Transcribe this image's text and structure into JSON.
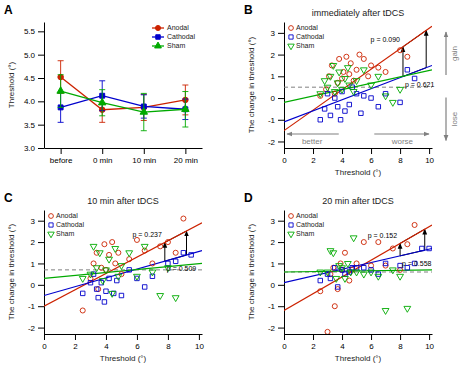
{
  "chart_data": [
    {
      "type": "line",
      "ylabel": "Threshold (°)",
      "categories": [
        "before",
        "0 min",
        "10 min",
        "20 min"
      ],
      "ylim": [
        3.0,
        5.7
      ],
      "yticks": [
        {
          "value": 3.0,
          "label": "3.0"
        },
        3.5,
        {
          "value": 4.0,
          "label": "4.0"
        },
        4.5,
        {
          "value": 5.0,
          "label": "5.0"
        },
        5.5
      ],
      "legend": "upper right",
      "series": [
        {
          "name": "Anodal",
          "color": "#cc2200",
          "marker": "circle",
          "values": [
            4.52,
            3.82,
            3.87,
            4.03
          ],
          "errors": [
            0.35,
            0.27,
            0.28,
            0.32
          ]
        },
        {
          "name": "Cathodal",
          "color": "#0000cc",
          "marker": "square",
          "values": [
            3.87,
            4.12,
            3.89,
            3.83
          ],
          "errors": [
            0.32,
            0.32,
            0.25,
            0.22
          ]
        },
        {
          "name": "Sham",
          "color": "#00aa00",
          "marker": "triangle-up",
          "values": [
            4.22,
            3.97,
            3.77,
            3.83
          ],
          "errors": [
            0.35,
            0.28,
            0.4,
            0.38
          ]
        }
      ],
      "annotations": [
        {
          "type": "label",
          "text": "A"
        }
      ]
    },
    {
      "type": "scatter",
      "title": "immediately after tDCS",
      "xlabel": "Threshold (°)",
      "ylabel": "The change in threshold (°)",
      "xlim": [
        0,
        10.2
      ],
      "ylim": [
        -2.3,
        3.5
      ],
      "xticks": [
        0,
        2,
        4,
        6,
        8,
        10
      ],
      "yticks": [
        -2,
        -1,
        0,
        1,
        2,
        3
      ],
      "legend": "upper left",
      "series": [
        {
          "type": "scatter",
          "name": "Anodal",
          "color": "#cc2200",
          "marker": "circle",
          "x": [
            2.5,
            2.9,
            3.1,
            3.3,
            3.5,
            3.7,
            3.8,
            4.0,
            4.1,
            4.3,
            4.5,
            4.6,
            4.8,
            5.0,
            5.2,
            5.5,
            5.8,
            6.0,
            6.5,
            7.0,
            8.0,
            8.5
          ],
          "values": [
            0.1,
            0.4,
            1.0,
            1.5,
            0.2,
            0.7,
            1.8,
            0.9,
            1.2,
            1.9,
            1.1,
            1.6,
            0.8,
            1.3,
            2.0,
            1.8,
            1.0,
            1.5,
            1.4,
            1.2,
            2.2,
            1.9
          ]
        },
        {
          "type": "scatter",
          "name": "Cathodal",
          "color": "#0000cc",
          "marker": "square",
          "x": [
            2.5,
            2.8,
            3.0,
            3.2,
            3.5,
            3.7,
            3.9,
            4.0,
            4.2,
            4.5,
            4.7,
            5.0,
            5.3,
            5.5,
            6.0,
            6.5,
            7.0,
            8.0,
            8.5,
            9.0
          ],
          "values": [
            -1.0,
            -0.5,
            0.2,
            -0.8,
            0.0,
            -0.4,
            -1.0,
            0.3,
            -0.6,
            -0.3,
            0.5,
            0.2,
            -0.7,
            0.1,
            0.0,
            -0.4,
            0.2,
            -0.2,
            1.3,
            0.9
          ]
        },
        {
          "type": "scatter",
          "name": "Sham",
          "color": "#00aa00",
          "marker": "triangle-down",
          "x": [
            2.5,
            2.8,
            3.0,
            3.2,
            3.4,
            3.5,
            3.7,
            3.8,
            4.0,
            4.2,
            4.4,
            4.5,
            4.8,
            5.0,
            5.5,
            6.0,
            6.5,
            7.0,
            7.5,
            8.0
          ],
          "values": [
            0.2,
            0.8,
            0.5,
            1.0,
            1.5,
            0.3,
            0.7,
            1.2,
            0.4,
            0.9,
            1.4,
            0.6,
            0.3,
            0.8,
            1.3,
            0.6,
            1.0,
            0.1,
            -0.2,
            0.4
          ]
        },
        {
          "type": "line",
          "color": "#cc2200",
          "x": [
            0,
            10.2
          ],
          "values": [
            -1.5,
            3.3
          ]
        },
        {
          "type": "line",
          "color": "#0000cc",
          "x": [
            0,
            10.2
          ],
          "values": [
            -1.1,
            1.5
          ]
        },
        {
          "type": "line",
          "color": "#00aa00",
          "x": [
            0,
            10.2
          ],
          "values": [
            -0.2,
            1.3
          ]
        }
      ],
      "annotations": [
        {
          "type": "label",
          "text": "B"
        },
        {
          "type": "hline",
          "y": 0.5,
          "color": "gray",
          "line_style": "dashed"
        },
        {
          "type": "bracket",
          "color": "black",
          "x": [
            8.2,
            9.8
          ],
          "y_top": [
            2.358824,
            3.111765
          ],
          "y_bottom": [
            0.990196,
            1.398039
          ],
          "labels": [
            "p = 0.090",
            "p = 0.621"
          ]
        },
        {
          "type": "arrow",
          "direction": "left",
          "color": "gray",
          "text": "better"
        },
        {
          "type": "arrow",
          "direction": "right",
          "color": "gray",
          "text": "worse"
        },
        {
          "type": "arrow",
          "direction": "up",
          "color": "gray",
          "text": "gain"
        },
        {
          "type": "arrow",
          "direction": "down",
          "color": "gray",
          "text": "lose"
        }
      ]
    },
    {
      "type": "scatter",
      "title": "10 min after tDCS",
      "xlabel": "Threshold (°)",
      "ylabel": "The change in threshold (°)",
      "xlim": [
        0,
        10.2
      ],
      "ylim": [
        -2.3,
        3.5
      ],
      "xticks": [
        0,
        2,
        4,
        6,
        8,
        10
      ],
      "yticks": [
        -2,
        -1,
        0,
        1,
        2,
        3
      ],
      "legend": "upper left",
      "series": [
        {
          "type": "scatter",
          "name": "Anodal",
          "color": "#cc2200",
          "marker": "circle",
          "x": [
            2.5,
            3.0,
            3.2,
            3.4,
            3.5,
            3.7,
            3.9,
            4.0,
            4.2,
            4.4,
            4.6,
            4.8,
            5.0,
            5.5,
            6.0,
            6.5,
            7.0,
            7.5,
            8.0,
            8.5,
            9.0
          ],
          "values": [
            -1.2,
            0.3,
            1.0,
            1.5,
            -0.2,
            0.8,
            1.9,
            0.7,
            1.4,
            2.0,
            1.0,
            1.5,
            0.5,
            1.2,
            2.1,
            1.6,
            1.0,
            1.8,
            2.0,
            1.5,
            3.1
          ]
        },
        {
          "type": "scatter",
          "name": "Cathodal",
          "color": "#0000cc",
          "marker": "square",
          "x": [
            2.5,
            3.0,
            3.2,
            3.4,
            3.5,
            3.7,
            3.9,
            4.0,
            4.2,
            4.5,
            4.7,
            5.0,
            5.5,
            6.0,
            6.5,
            7.0,
            8.0,
            8.5,
            9.0,
            9.5
          ],
          "values": [
            -0.4,
            0.1,
            0.5,
            -0.2,
            -0.6,
            0.1,
            -0.8,
            -0.3,
            0.3,
            -0.4,
            0.2,
            -0.5,
            0.7,
            0.3,
            -0.1,
            0.4,
            1.0,
            1.1,
            1.5,
            1.4
          ]
        },
        {
          "type": "scatter",
          "name": "Sham",
          "color": "#00aa00",
          "marker": "triangle-down",
          "x": [
            2.5,
            3.0,
            3.2,
            3.4,
            3.6,
            3.8,
            4.0,
            4.2,
            4.4,
            4.6,
            4.8,
            5.0,
            5.5,
            6.0,
            6.5,
            7.0,
            7.5,
            8.0,
            8.5
          ],
          "values": [
            0.3,
            0.5,
            1.8,
            0.8,
            1.5,
            0.2,
            0.7,
            1.2,
            -0.4,
            1.7,
            0.4,
            0.9,
            1.5,
            0.4,
            1.8,
            0.6,
            -0.5,
            0.8,
            -0.6
          ]
        },
        {
          "type": "line",
          "color": "#cc2200",
          "x": [
            0,
            10.2
          ],
          "values": [
            -1.0,
            2.9
          ]
        },
        {
          "type": "line",
          "color": "#0000cc",
          "x": [
            0,
            10.2
          ],
          "values": [
            -0.5,
            1.6
          ]
        },
        {
          "type": "line",
          "color": "#00aa00",
          "x": [
            0,
            10.2
          ],
          "values": [
            0.3,
            1.0
          ]
        }
      ],
      "annotations": [
        {
          "type": "label",
          "text": "C"
        },
        {
          "type": "hline",
          "y": 0.7,
          "color": "gray",
          "line_style": "dashed"
        },
        {
          "type": "bracket",
          "color": "black",
          "x": [
            7.8,
            9.2
          ],
          "y_top": [
            1.982353,
            2.517647
          ],
          "y_bottom": [
            1.105882,
            1.394118
          ],
          "labels": [
            "p = 0.237",
            "p = 0.509"
          ]
        }
      ]
    },
    {
      "type": "scatter",
      "title": "20 min after tDCS",
      "xlabel": "Threshold (°)",
      "ylabel": "The change in threshold (°)",
      "xlim": [
        0,
        10.2
      ],
      "ylim": [
        -2.3,
        3.5
      ],
      "xticks": [
        0,
        2,
        4,
        6,
        8,
        10
      ],
      "yticks": [
        -2,
        -1,
        0,
        1,
        2,
        3
      ],
      "legend": "upper left",
      "series": [
        {
          "type": "scatter",
          "name": "Anodal",
          "color": "#cc2200",
          "marker": "circle",
          "x": [
            2.5,
            3.0,
            3.2,
            3.4,
            3.5,
            3.7,
            3.9,
            4.0,
            4.2,
            4.5,
            4.7,
            5.0,
            5.5,
            6.0,
            6.5,
            7.0,
            7.5,
            8.0,
            8.5,
            9.0
          ],
          "values": [
            -0.3,
            -2.2,
            0.5,
            0.8,
            -1.0,
            -0.2,
            1.0,
            0.7,
            1.5,
            0.2,
            0.7,
            1.0,
            2.0,
            0.9,
            2.0,
            0.9,
            1.7,
            0.7,
            1.9,
            2.8
          ]
        },
        {
          "type": "scatter",
          "name": "Cathodal",
          "color": "#0000cc",
          "marker": "square",
          "x": [
            2.5,
            3.0,
            3.2,
            3.5,
            3.7,
            4.0,
            4.2,
            4.5,
            4.7,
            5.0,
            5.5,
            6.0,
            6.5,
            7.0,
            8.0,
            8.5,
            9.0,
            9.5,
            10.0
          ],
          "values": [
            0.2,
            0.5,
            0.3,
            0.8,
            -0.1,
            0.7,
            0.5,
            0.6,
            0.8,
            0.8,
            0.8,
            0.7,
            0.5,
            1.0,
            0.9,
            0.8,
            1.0,
            1.7,
            1.7
          ]
        },
        {
          "type": "scatter",
          "name": "Sham",
          "color": "#00aa00",
          "marker": "triangle-down",
          "x": [
            2.5,
            3.0,
            3.2,
            3.4,
            3.6,
            3.8,
            4.0,
            4.2,
            4.4,
            4.6,
            4.8,
            5.0,
            5.5,
            6.0,
            6.5,
            7.0,
            7.5,
            8.0,
            8.5
          ],
          "values": [
            0.6,
            0.6,
            1.6,
            1.5,
            0.3,
            0.9,
            0.8,
            0.3,
            1.0,
            0.6,
            2.2,
            0.6,
            0.5,
            0.6,
            0.4,
            -1.2,
            0.7,
            0.4,
            -1.1
          ]
        },
        {
          "type": "line",
          "color": "#cc2200",
          "x": [
            0,
            10.2
          ],
          "values": [
            -1.2,
            2.8
          ]
        },
        {
          "type": "line",
          "color": "#0000cc",
          "x": [
            0,
            10.2
          ],
          "values": [
            0.1,
            1.7
          ]
        },
        {
          "type": "line",
          "color": "#00aa00",
          "x": [
            0,
            10.2
          ],
          "values": [
            0.6,
            0.7
          ]
        }
      ],
      "annotations": [
        {
          "type": "label",
          "text": "D"
        },
        {
          "type": "hline",
          "y": 0.6,
          "color": "gray",
          "line_style": "dashed"
        },
        {
          "type": "bracket",
          "color": "black",
          "x": [
            8.0,
            9.7
          ],
          "y_top": [
            1.937255,
            2.603922
          ],
          "y_bottom": [
            1.354902,
            1.621569
          ],
          "labels": [
            "p = 0.152",
            "p = 0.558"
          ]
        }
      ]
    }
  ]
}
